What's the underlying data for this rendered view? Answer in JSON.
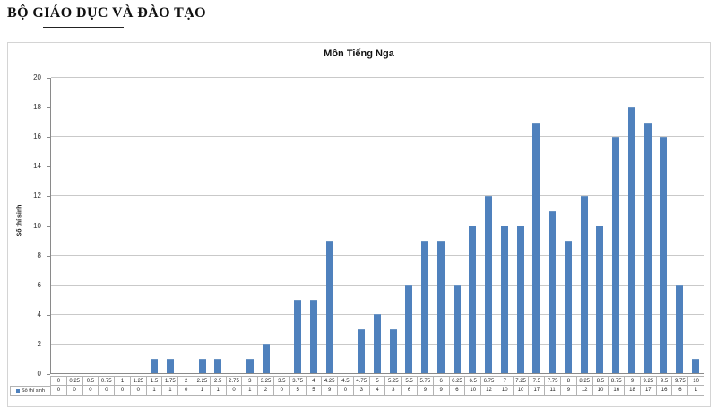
{
  "page": {
    "header": "BỘ GIÁO DỤC VÀ ĐÀO TẠO"
  },
  "chart_data": {
    "type": "bar",
    "title": "Môn Tiếng Nga",
    "xlabel": "",
    "ylabel": "Số thí sinh",
    "series_name": "Số thí sinh",
    "ylim": [
      0,
      20
    ],
    "ytick_step": 2,
    "grid": true,
    "legend_position": "table-row-header-bottom-left",
    "bar_color": "#4F81BD",
    "categories": [
      "0",
      "0.25",
      "0.5",
      "0.75",
      "1",
      "1.25",
      "1.5",
      "1.75",
      "2",
      "2.25",
      "2.5",
      "2.75",
      "3",
      "3.25",
      "3.5",
      "3.75",
      "4",
      "4.25",
      "4.5",
      "4.75",
      "5",
      "5.25",
      "5.5",
      "5.75",
      "6",
      "6.25",
      "6.5",
      "6.75",
      "7",
      "7.25",
      "7.5",
      "7.75",
      "8",
      "8.25",
      "8.5",
      "8.75",
      "9",
      "9.25",
      "9.5",
      "9.75",
      "10"
    ],
    "values": [
      0,
      0,
      0,
      0,
      0,
      0,
      1,
      1,
      0,
      1,
      1,
      0,
      1,
      2,
      0,
      5,
      5,
      9,
      0,
      3,
      4,
      3,
      6,
      9,
      9,
      6,
      10,
      12,
      10,
      10,
      17,
      11,
      9,
      12,
      10,
      16,
      18,
      17,
      16,
      6,
      1
    ]
  }
}
